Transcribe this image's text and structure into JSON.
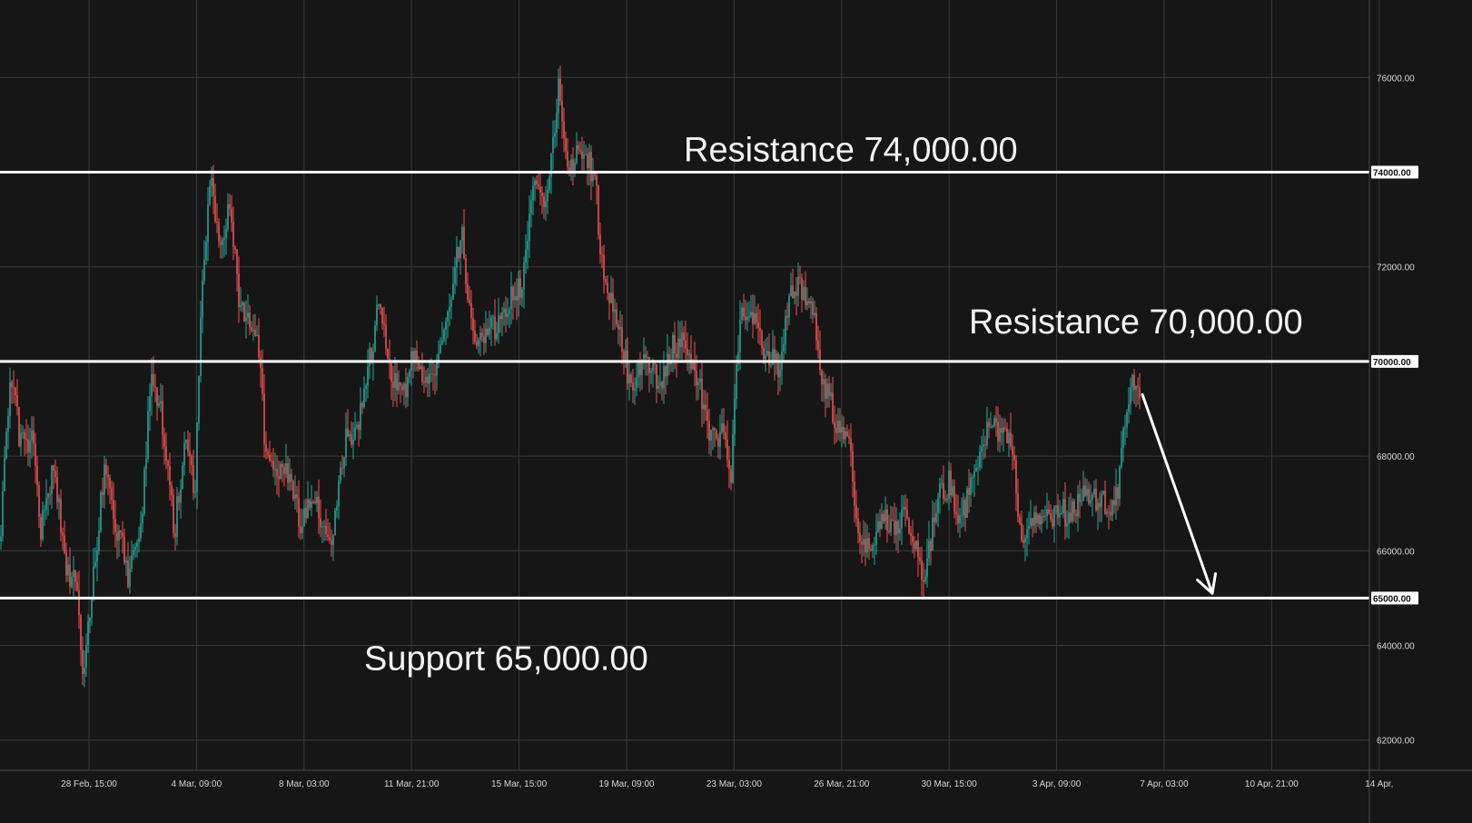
{
  "colors": {
    "background": "#161616",
    "grid": "#3a3a3a",
    "up_candle": "#26a69a",
    "down_candle": "#ef5350",
    "level_line": "#ffffff",
    "text": "#d8d8d8"
  },
  "chart_data": {
    "type": "candlestick",
    "title": "",
    "xlabel": "",
    "ylabel": "",
    "ylim": [
      61000,
      77700
    ],
    "grid": true,
    "y_ticks": [
      "62000.00",
      "64000.00",
      "66000.00",
      "68000.00",
      "70000.00",
      "72000.00",
      "74000.00",
      "76000.00"
    ],
    "x_ticks": [
      "28 Feb, 15:00",
      "4 Mar, 09:00",
      "8 Mar, 03:00",
      "11 Mar, 21:00",
      "15 Mar, 15:00",
      "19 Mar, 09:00",
      "23 Mar, 03:00",
      "26 Mar, 21:00",
      "30 Mar, 15:00",
      "3 Apr, 09:00",
      "7 Apr, 03:00",
      "10 Apr, 21:00",
      "14 Apr,"
    ],
    "levels": [
      {
        "value": 74000,
        "axis_tag": "74000.00",
        "label": "Resistance 74,000.00"
      },
      {
        "value": 70000,
        "axis_tag": "70000.00",
        "label": "Resistance 70,000.00"
      },
      {
        "value": 65000,
        "axis_tag": "65000.00",
        "label": "Support 65,000.00"
      }
    ],
    "price_path": [
      [
        0,
        66200
      ],
      [
        12,
        69800
      ],
      [
        22,
        68300
      ],
      [
        35,
        68400
      ],
      [
        45,
        66500
      ],
      [
        60,
        67900
      ],
      [
        72,
        65500
      ],
      [
        85,
        65200
      ],
      [
        92,
        63100
      ],
      [
        100,
        65000
      ],
      [
        115,
        67700
      ],
      [
        128,
        66600
      ],
      [
        142,
        65400
      ],
      [
        155,
        66300
      ],
      [
        166,
        69600
      ],
      [
        178,
        68900
      ],
      [
        192,
        66400
      ],
      [
        205,
        68600
      ],
      [
        215,
        67200
      ],
      [
        222,
        71800
      ],
      [
        232,
        73800
      ],
      [
        242,
        72200
      ],
      [
        252,
        73400
      ],
      [
        262,
        71500
      ],
      [
        275,
        70800
      ],
      [
        287,
        70000
      ],
      [
        292,
        67900
      ],
      [
        306,
        67800
      ],
      [
        320,
        67700
      ],
      [
        330,
        66600
      ],
      [
        345,
        67200
      ],
      [
        355,
        66300
      ],
      [
        365,
        66100
      ],
      [
        380,
        68300
      ],
      [
        395,
        68700
      ],
      [
        405,
        69900
      ],
      [
        418,
        71200
      ],
      [
        430,
        69700
      ],
      [
        445,
        69300
      ],
      [
        458,
        70300
      ],
      [
        470,
        69400
      ],
      [
        485,
        70100
      ],
      [
        495,
        71300
      ],
      [
        508,
        72800
      ],
      [
        518,
        70800
      ],
      [
        530,
        70500
      ],
      [
        545,
        70700
      ],
      [
        560,
        71300
      ],
      [
        575,
        71600
      ],
      [
        588,
        73800
      ],
      [
        600,
        73200
      ],
      [
        610,
        74600
      ],
      [
        616,
        75900
      ],
      [
        625,
        74000
      ],
      [
        640,
        74500
      ],
      [
        655,
        73900
      ],
      [
        665,
        71500
      ],
      [
        680,
        71000
      ],
      [
        695,
        69300
      ],
      [
        710,
        70100
      ],
      [
        725,
        69500
      ],
      [
        740,
        70300
      ],
      [
        755,
        70400
      ],
      [
        768,
        69700
      ],
      [
        780,
        68600
      ],
      [
        795,
        68400
      ],
      [
        805,
        67700
      ],
      [
        815,
        71000
      ],
      [
        830,
        70800
      ],
      [
        845,
        70100
      ],
      [
        858,
        69800
      ],
      [
        870,
        71300
      ],
      [
        880,
        71700
      ],
      [
        895,
        71200
      ],
      [
        905,
        69700
      ],
      [
        920,
        68800
      ],
      [
        935,
        68200
      ],
      [
        945,
        66200
      ],
      [
        958,
        66200
      ],
      [
        970,
        66700
      ],
      [
        985,
        66600
      ],
      [
        1000,
        66700
      ],
      [
        1010,
        66000
      ],
      [
        1018,
        65200
      ],
      [
        1030,
        67000
      ],
      [
        1045,
        67400
      ],
      [
        1058,
        66600
      ],
      [
        1070,
        67400
      ],
      [
        1080,
        68300
      ],
      [
        1092,
        68600
      ],
      [
        1105,
        68600
      ],
      [
        1115,
        68000
      ],
      [
        1125,
        66100
      ],
      [
        1135,
        66500
      ],
      [
        1150,
        66600
      ],
      [
        1165,
        66800
      ],
      [
        1180,
        66800
      ],
      [
        1195,
        67200
      ],
      [
        1210,
        67100
      ],
      [
        1222,
        66900
      ],
      [
        1232,
        67400
      ],
      [
        1240,
        68900
      ],
      [
        1250,
        69700
      ],
      [
        1256,
        69400
      ]
    ],
    "forecast_arrow": {
      "from": [
        1258,
        69300
      ],
      "to": [
        1335,
        65100
      ]
    },
    "x_range": [
      0,
      1510
    ]
  }
}
